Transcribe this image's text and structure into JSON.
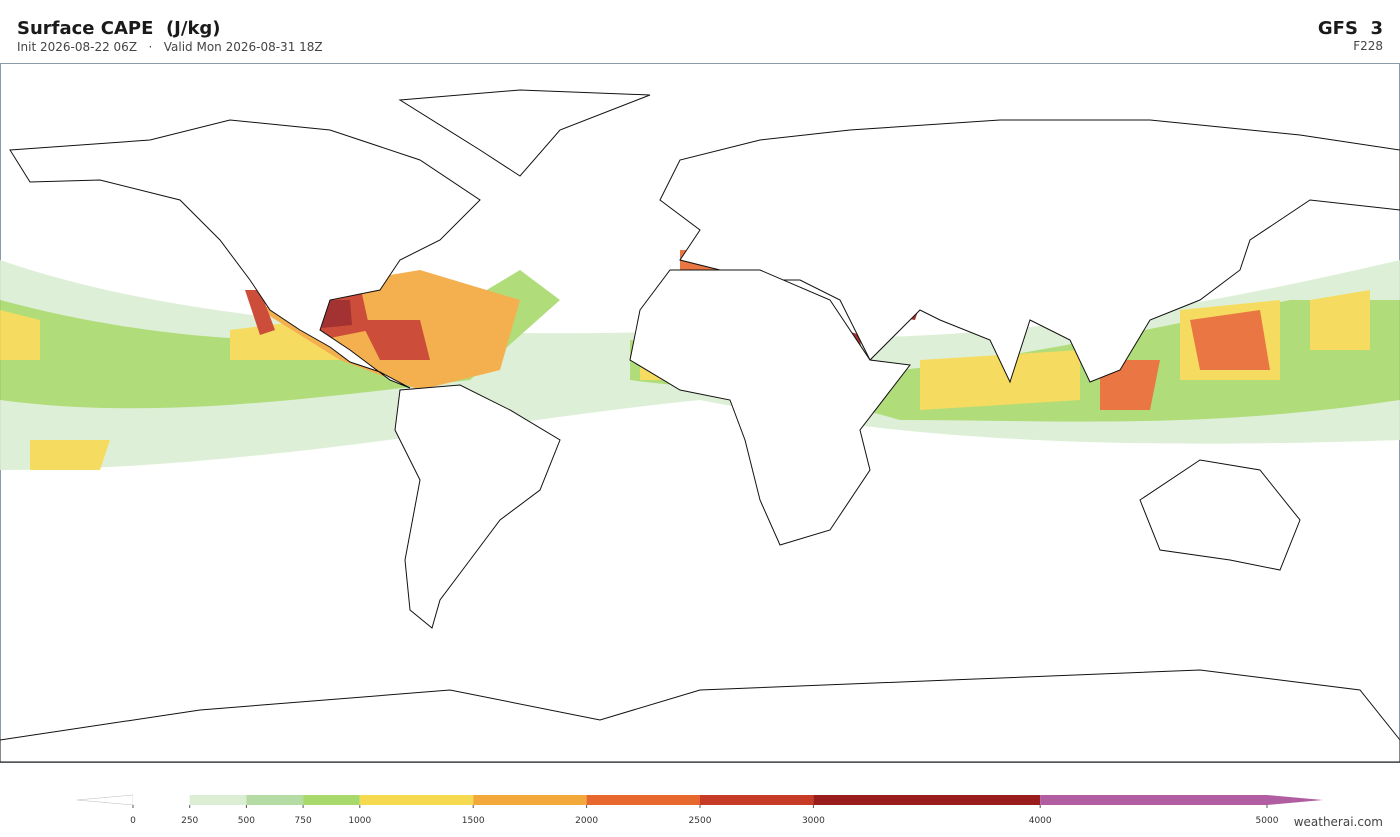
{
  "header": {
    "title": "Surface CAPE  (J/kg)",
    "subtitle": "Init 2026-08-22 06Z   ·   Valid Mon 2026-08-31 18Z",
    "model": "GFS  3",
    "forecast_hour": "F228"
  },
  "colorbar": {
    "ticks": [
      0,
      250,
      500,
      750,
      1000,
      1500,
      2000,
      2500,
      3000,
      4000,
      5000
    ],
    "colors": [
      "#ffffff",
      "#dbeed3",
      "#b5dca5",
      "#a8d96c",
      "#f5d94f",
      "#f3a83c",
      "#e7682f",
      "#c73a25",
      "#9a1d1e",
      "#b05ea1"
    ]
  },
  "footer": {
    "credit": "weatherai.com"
  }
}
